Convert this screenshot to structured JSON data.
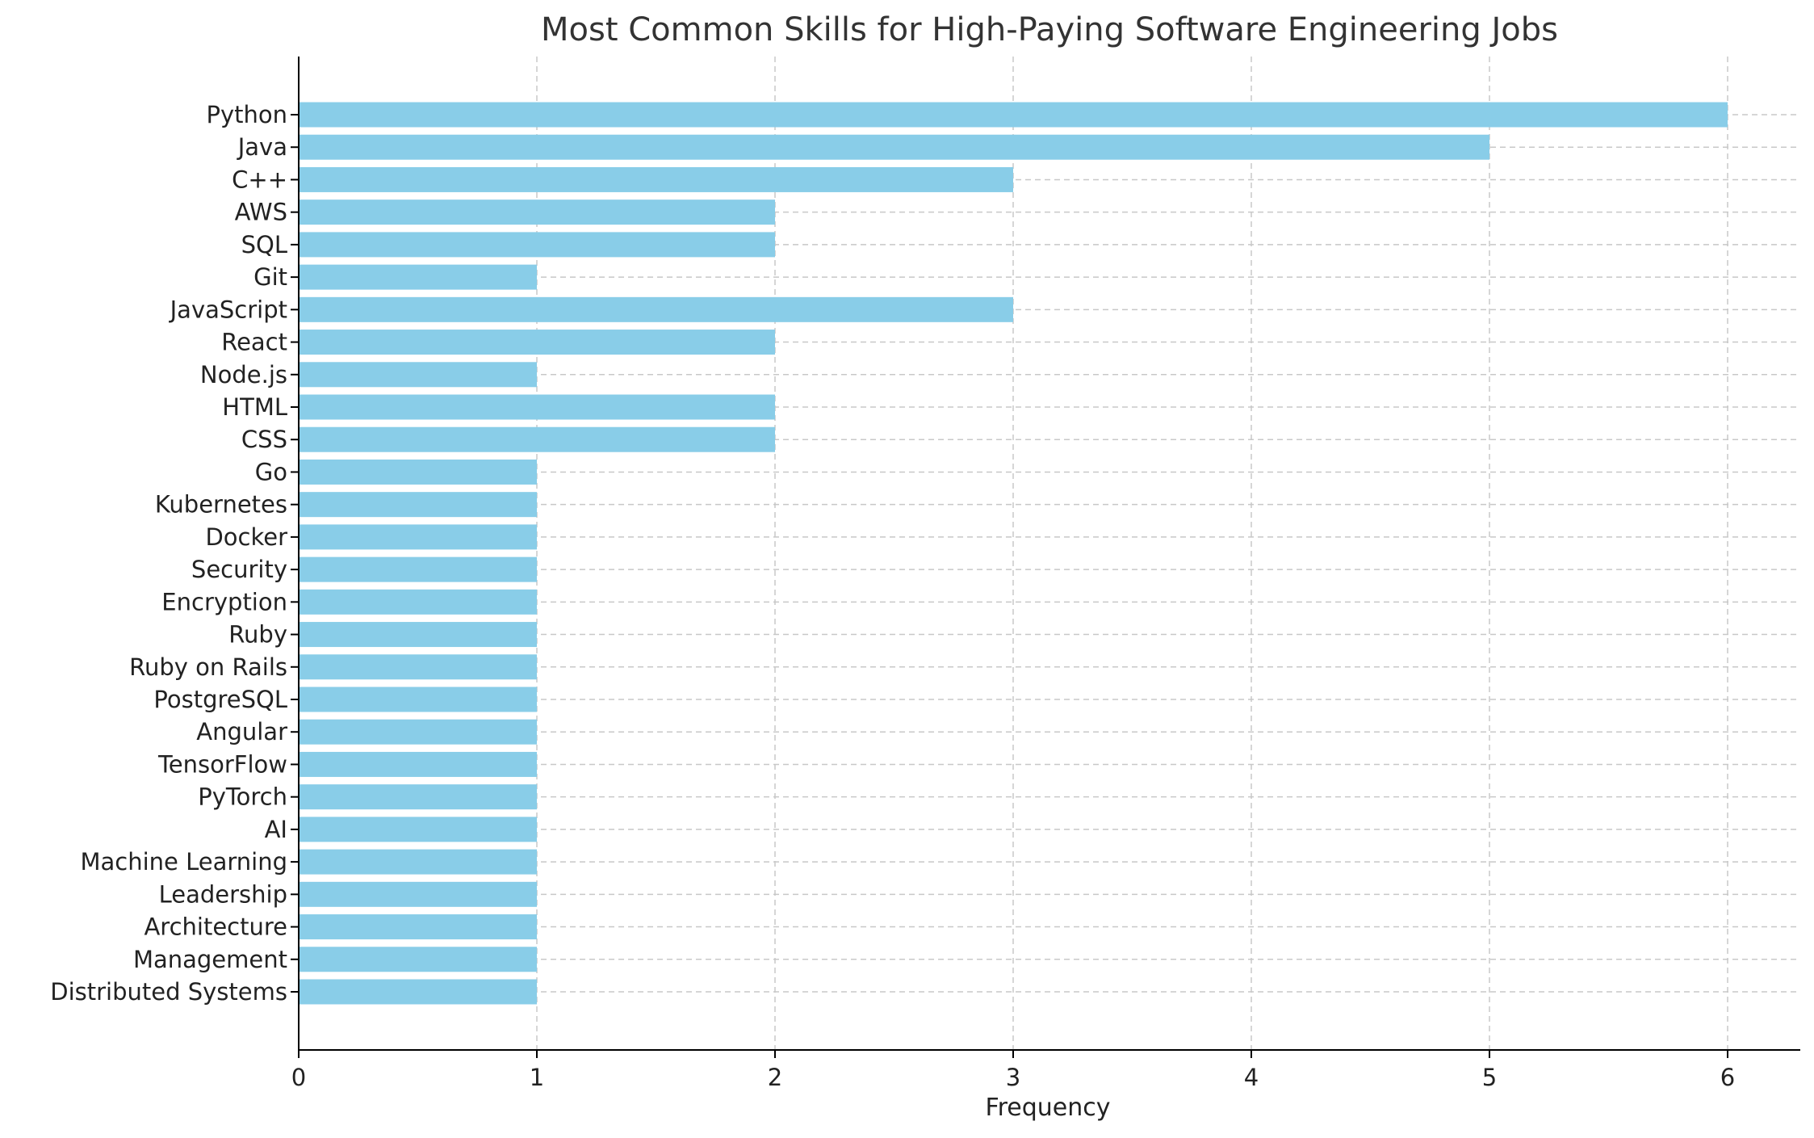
{
  "chart_data": {
    "type": "bar",
    "orientation": "horizontal",
    "title": "Most Common Skills for High-Paying Software Engineering Jobs",
    "xlabel": "Frequency",
    "ylabel": "",
    "xlim": [
      0,
      6.3
    ],
    "xticks": [
      0,
      1,
      2,
      3,
      4,
      5,
      6
    ],
    "grid": true,
    "bar_color": "#89CDE8",
    "categories": [
      "Python",
      "Java",
      "C++",
      "AWS",
      "SQL",
      "Git",
      "JavaScript",
      "React",
      "Node.js",
      "HTML",
      "CSS",
      "Go",
      "Kubernetes",
      "Docker",
      "Security",
      "Encryption",
      "Ruby",
      "Ruby on Rails",
      "PostgreSQL",
      "Angular",
      "TensorFlow",
      "PyTorch",
      "AI",
      "Machine Learning",
      "Leadership",
      "Architecture",
      "Management",
      "Distributed Systems"
    ],
    "values": [
      6,
      5,
      3,
      2,
      2,
      1,
      3,
      2,
      1,
      2,
      2,
      1,
      1,
      1,
      1,
      1,
      1,
      1,
      1,
      1,
      1,
      1,
      1,
      1,
      1,
      1,
      1,
      1
    ]
  }
}
